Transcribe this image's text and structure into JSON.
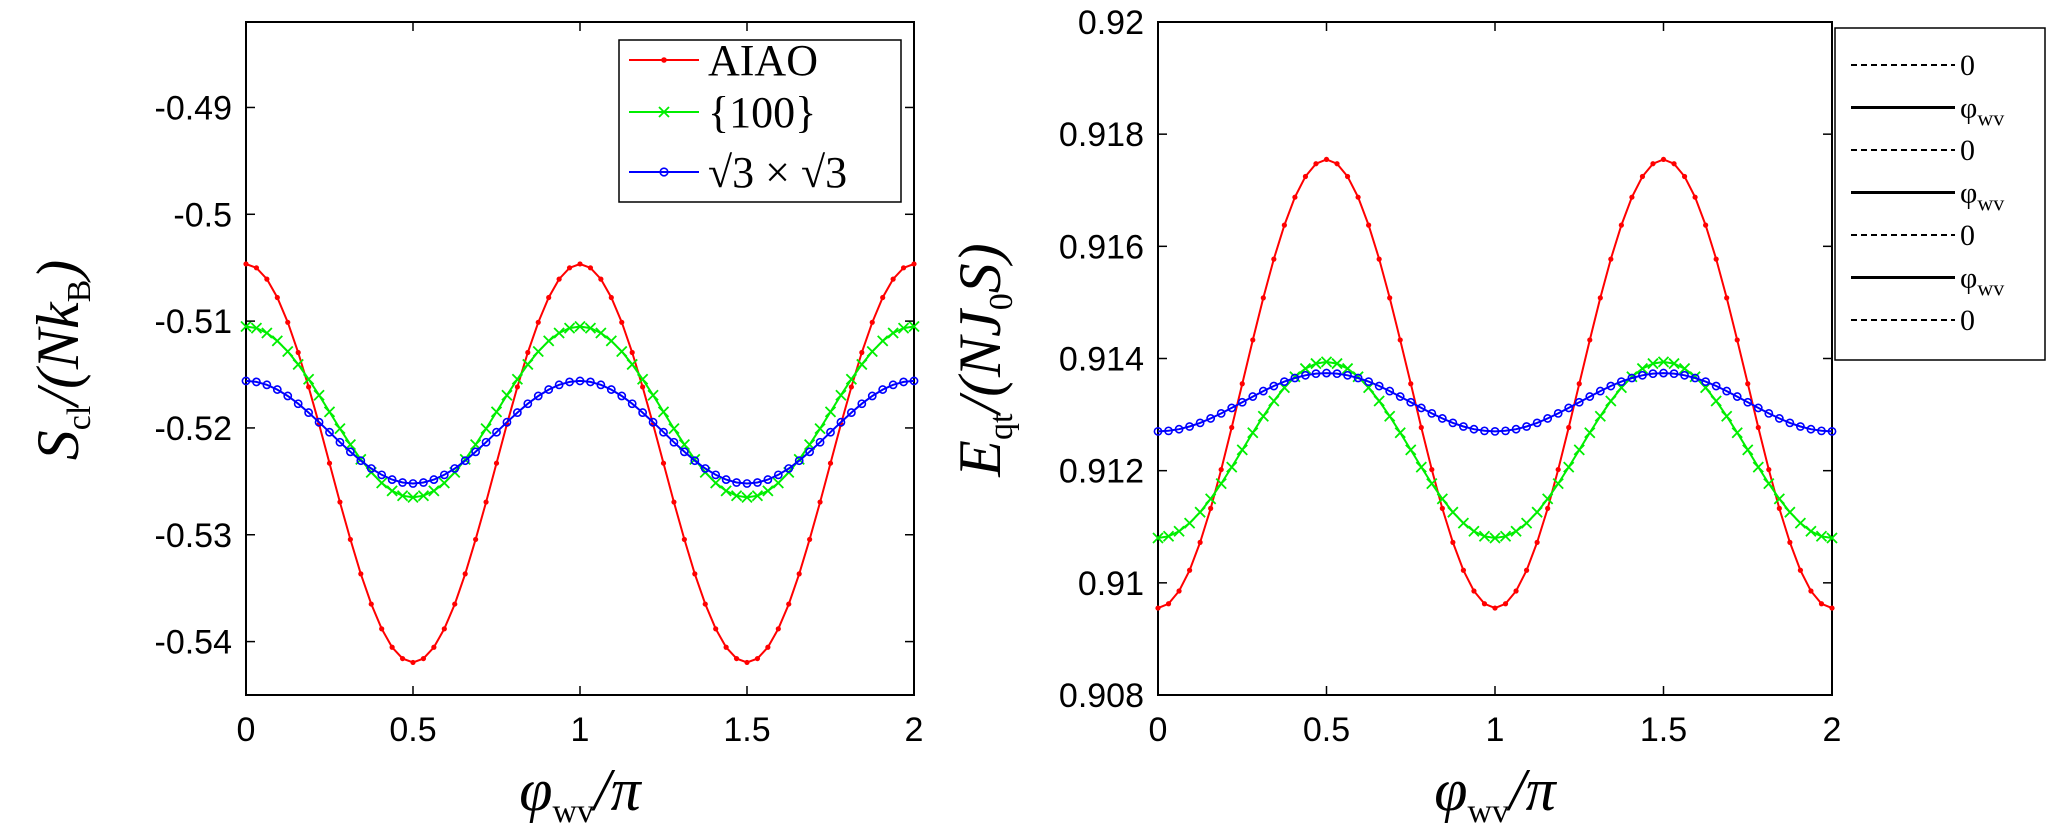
{
  "chart_data": [
    {
      "type": "line",
      "title": "",
      "xlabel": {
        "main": "φ",
        "sub": "wv",
        "tail": "/π"
      },
      "ylabel": {
        "main": "S",
        "sub": "cl",
        "tail": "/(Nk",
        "sub2": "B",
        "end": ")"
      },
      "xlim": [
        0,
        2
      ],
      "ylim": [
        -0.545,
        -0.482
      ],
      "xticks": [
        "0",
        "0.5",
        "1",
        "1.5",
        "2"
      ],
      "yticks": [
        "-0.49",
        "-0.5",
        "-0.51",
        "-0.52",
        "-0.53",
        "-0.54"
      ],
      "x_range": {
        "start": 0,
        "end": 2,
        "points": 65
      },
      "series": [
        {
          "name": "AIAO",
          "color": "#ff0000",
          "marker": "dot",
          "mean": -0.5233,
          "amp": 0.01865
        },
        {
          "name": "{100}",
          "color": "#00ee00",
          "marker": "x",
          "mean": -0.5185,
          "amp": 0.008
        },
        {
          "name": "√3 × √3",
          "color": "#0000ff",
          "marker": "circle",
          "mean": -0.5204,
          "amp": 0.0048
        }
      ],
      "legend": {
        "position": "top-right",
        "entries": [
          "AIAO",
          "{100}",
          "√3 × √3"
        ]
      }
    },
    {
      "type": "line",
      "title": "",
      "xlabel": {
        "main": "φ",
        "sub": "wv",
        "tail": "/π"
      },
      "ylabel": {
        "main": "E",
        "sub": "qt",
        "tail": "/(NJ",
        "sub2": "0",
        "end": "S)"
      },
      "xlim": [
        0,
        2
      ],
      "ylim": [
        0.908,
        0.92
      ],
      "xticks": [
        "0",
        "0.5",
        "1",
        "1.5",
        "2"
      ],
      "yticks": [
        "0.92",
        "0.918",
        "0.916",
        "0.914",
        "0.912",
        "0.91",
        "0.908"
      ],
      "x_range": {
        "start": 0,
        "end": 2,
        "points": 65
      },
      "series": [
        {
          "name": "AIAO",
          "color": "#ff0000",
          "marker": "dot",
          "mean": 0.91355,
          "amp": -0.004
        },
        {
          "name": "{100}",
          "color": "#00ee00",
          "marker": "x",
          "mean": 0.91237,
          "amp": -0.00157
        },
        {
          "name": "√3 × √3",
          "color": "#0000ff",
          "marker": "circle",
          "mean": 0.91322,
          "amp": -0.00052
        }
      ],
      "legend": {
        "position": "outside-right",
        "entries": [
          {
            "label": "0",
            "style": "dashed"
          },
          {
            "label": "φ",
            "sub": "wv",
            "style": "solid"
          },
          {
            "label": "0",
            "style": "dashed"
          },
          {
            "label": "φ",
            "sub": "wv",
            "style": "solid"
          },
          {
            "label": "0",
            "style": "dashed"
          },
          {
            "label": "φ",
            "sub": "wv",
            "style": "solid"
          },
          {
            "label": "0",
            "style": "dashed"
          }
        ]
      }
    }
  ]
}
